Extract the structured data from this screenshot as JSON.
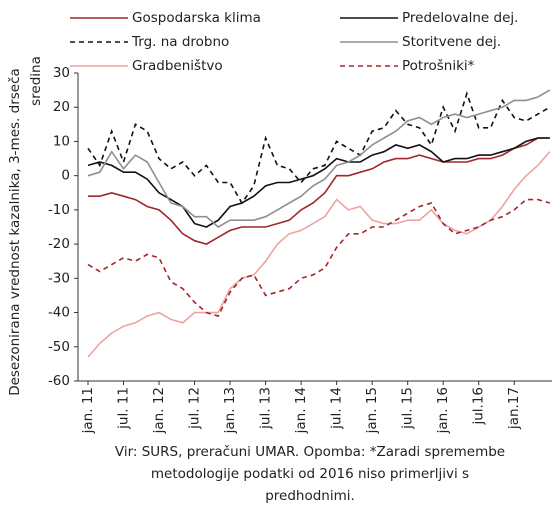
{
  "chart_data": {
    "type": "line",
    "y_label": [
      "Desezonirana vrednost kazalnika, 3-mes. drseča",
      "sredina"
    ],
    "note": [
      "Vir: SURS, preračuni UMAR. Opomba: *Zaradi spremembe",
      "metodologije podatki od 2016 niso primerljivi s",
      "predhodnimi."
    ],
    "categories": [
      "jan. 11",
      null,
      null,
      "jul. 11",
      null,
      null,
      "jan. 12",
      null,
      null,
      "jul. 12",
      null,
      null,
      "jan. 13",
      null,
      null,
      "jul. 13",
      null,
      null,
      "jan. 14",
      null,
      null,
      "jul. 14",
      null,
      null,
      "jan. 15",
      null,
      null,
      "jul. 15",
      null,
      null,
      "jan. 16",
      null,
      null,
      "jul.16",
      null,
      null,
      "jan.17",
      null,
      null,
      null
    ],
    "ylim": [
      -60,
      30
    ],
    "yticks": [
      -60,
      -50,
      -40,
      -30,
      -20,
      -10,
      0,
      10,
      20,
      30
    ],
    "series": [
      {
        "name": "Gospodarska klima",
        "color": "#a3262a",
        "line_style": "solid",
        "values": [
          -6,
          -6,
          -5,
          -6,
          -7,
          -9,
          -10,
          -13,
          -17,
          -19,
          -20,
          -18,
          -16,
          -15,
          -15,
          -15,
          -14,
          -13,
          -10,
          -8,
          -5,
          0,
          0,
          1,
          2,
          4,
          5,
          5,
          6,
          5,
          4,
          4,
          4,
          5,
          5,
          6,
          8,
          9,
          11,
          11
        ]
      },
      {
        "name": "Predelovalne dej.",
        "color": "#111111",
        "line_style": "solid",
        "values": [
          3,
          4,
          3,
          1,
          1,
          -1,
          -5,
          -7,
          -9,
          -14,
          -15,
          -13,
          -9,
          -8,
          -6,
          -3,
          -2,
          -2,
          -1,
          0,
          2,
          5,
          4,
          4,
          6,
          7,
          9,
          8,
          9,
          7,
          4,
          5,
          5,
          6,
          6,
          7,
          8,
          10,
          11,
          11
        ]
      },
      {
        "name": "Trg. na drobno",
        "color": "#111111",
        "line_style": "dashed",
        "values": [
          8,
          3,
          13,
          4,
          15,
          13,
          5,
          2,
          4,
          0,
          3,
          -2,
          -2,
          -8,
          -3,
          11,
          3,
          2,
          -2,
          2,
          3,
          10,
          8,
          6,
          13,
          14,
          19,
          15,
          14,
          9,
          20,
          13,
          24,
          14,
          14,
          22,
          17,
          16,
          18,
          20
        ]
      },
      {
        "name": "Storitvene dej.",
        "color": "#8f8f8f",
        "line_style": "solid",
        "values": [
          0,
          1,
          7,
          2,
          6,
          4,
          -2,
          -8,
          -9,
          -12,
          -12,
          -15,
          -13,
          -13,
          -13,
          -12,
          -10,
          -8,
          -6,
          -3,
          -1,
          3,
          4,
          6,
          9,
          11,
          13,
          16,
          17,
          15,
          17,
          18,
          17,
          18,
          19,
          20,
          22,
          22,
          23,
          25
        ]
      },
      {
        "name": "Gradbeništvo",
        "color": "#eda3a3",
        "line_style": "solid",
        "values": [
          -53,
          -49,
          -46,
          -44,
          -43,
          -41,
          -40,
          -42,
          -43,
          -40,
          -40,
          -40,
          -33,
          -30,
          -29,
          -25,
          -20,
          -17,
          -16,
          -14,
          -12,
          -7,
          -10,
          -9,
          -13,
          -14,
          -14,
          -13,
          -13,
          -10,
          -14,
          -16,
          -17,
          -15,
          -13,
          -9,
          -4,
          0,
          3,
          7
        ]
      },
      {
        "name": "Potrošniki*",
        "color": "#a3262a",
        "line_style": "dashed",
        "values": [
          -26,
          -28,
          -26,
          -24,
          -25,
          -23,
          -24,
          -31,
          -33,
          -37,
          -40,
          -41,
          -34,
          -30,
          -29,
          -35,
          -34,
          -33,
          -30,
          -29,
          -27,
          -21,
          -17,
          -17,
          -15,
          -15,
          -13,
          -11,
          -9,
          -8,
          -14,
          -17,
          -16,
          -15,
          -13,
          -12,
          -10,
          -7,
          -7,
          -8
        ]
      }
    ]
  }
}
